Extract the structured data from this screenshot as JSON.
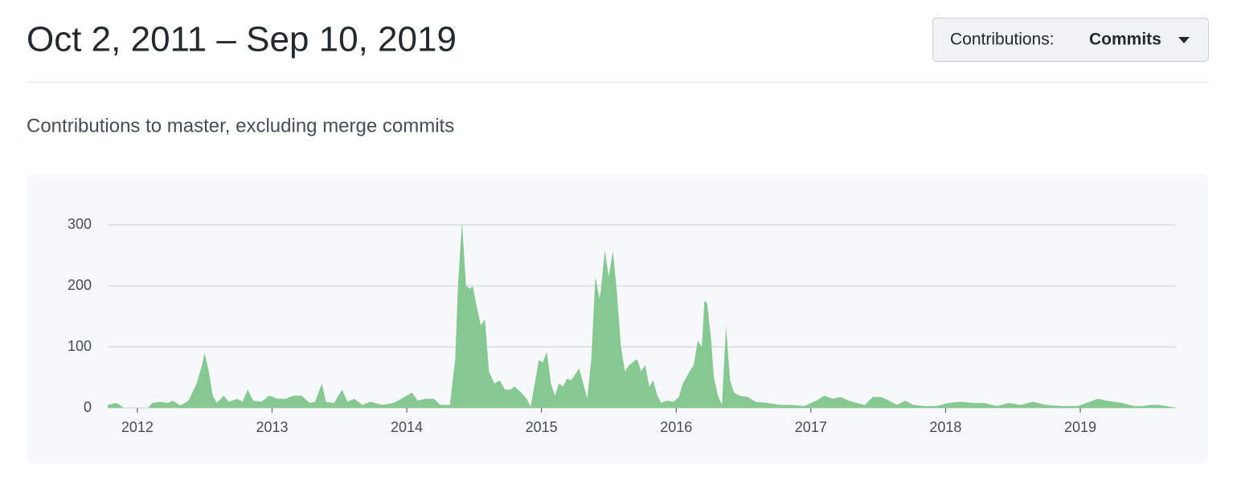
{
  "header": {
    "title": "Oct 2, 2011 – Sep 10, 2019",
    "button_label": "Contributions:",
    "button_value": "Commits"
  },
  "subtitle": "Contributions to master, excluding merge commits",
  "chart_data": {
    "type": "area",
    "color": "#86c891",
    "grid": true,
    "x": [
      2011.78,
      2011.84,
      2011.87,
      2011.9,
      2012.08,
      2012.11,
      2012.17,
      2012.23,
      2012.26,
      2012.32,
      2012.38,
      2012.44,
      2012.48,
      2012.5,
      2012.53,
      2012.56,
      2012.59,
      2012.64,
      2012.68,
      2012.74,
      2012.78,
      2012.82,
      2012.86,
      2012.92,
      2012.98,
      2013.04,
      2013.1,
      2013.16,
      2013.22,
      2013.28,
      2013.32,
      2013.37,
      2013.4,
      2013.46,
      2013.52,
      2013.56,
      2013.61,
      2013.67,
      2013.73,
      2013.82,
      2013.9,
      2013.96,
      2014.04,
      2014.08,
      2014.14,
      2014.2,
      2014.25,
      2014.32,
      2014.36,
      2014.38,
      2014.41,
      2014.44,
      2014.47,
      2014.49,
      2014.52,
      2014.55,
      2014.58,
      2014.61,
      2014.65,
      2014.69,
      2014.73,
      2014.77,
      2014.8,
      2014.85,
      2014.89,
      2014.92,
      2014.95,
      2014.98,
      2015.01,
      2015.04,
      2015.07,
      2015.1,
      2015.13,
      2015.16,
      2015.19,
      2015.22,
      2015.25,
      2015.28,
      2015.31,
      2015.34,
      2015.37,
      2015.4,
      2015.43,
      2015.44,
      2015.47,
      2015.5,
      2015.53,
      2015.56,
      2015.59,
      2015.62,
      2015.65,
      2015.68,
      2015.71,
      2015.74,
      2015.77,
      2015.8,
      2015.83,
      2015.86,
      2015.89,
      2015.93,
      2015.98,
      2016.02,
      2016.05,
      2016.1,
      2016.13,
      2016.16,
      2016.19,
      2016.21,
      2016.23,
      2016.26,
      2016.28,
      2016.31,
      2016.34,
      2016.37,
      2016.4,
      2016.43,
      2016.47,
      2016.53,
      2016.59,
      2016.68,
      2016.77,
      2016.86,
      2016.95,
      2017.04,
      2017.1,
      2017.16,
      2017.22,
      2017.28,
      2017.34,
      2017.4,
      2017.46,
      2017.52,
      2017.58,
      2017.64,
      2017.7,
      2017.76,
      2017.84,
      2017.93,
      2018.02,
      2018.11,
      2018.2,
      2018.29,
      2018.38,
      2018.47,
      2018.56,
      2018.65,
      2018.74,
      2018.86,
      2018.98,
      2019.07,
      2019.13,
      2019.19,
      2019.25,
      2019.31,
      2019.4,
      2019.46,
      2019.52,
      2019.58,
      2019.64,
      2019.71
    ],
    "values": [
      5,
      8,
      5,
      0,
      0,
      8,
      10,
      8,
      12,
      4,
      12,
      40,
      70,
      90,
      60,
      20,
      8,
      20,
      10,
      15,
      10,
      30,
      12,
      10,
      20,
      15,
      15,
      20,
      20,
      8,
      10,
      40,
      10,
      8,
      30,
      10,
      15,
      5,
      10,
      5,
      8,
      15,
      25,
      12,
      15,
      15,
      5,
      5,
      80,
      200,
      305,
      200,
      195,
      200,
      165,
      135,
      145,
      60,
      40,
      45,
      30,
      30,
      35,
      25,
      15,
      2,
      40,
      78,
      75,
      92,
      40,
      20,
      40,
      35,
      48,
      45,
      55,
      65,
      40,
      15,
      80,
      215,
      180,
      190,
      258,
      215,
      257,
      190,
      100,
      60,
      70,
      75,
      80,
      60,
      70,
      35,
      45,
      20,
      8,
      12,
      10,
      18,
      40,
      60,
      70,
      110,
      100,
      175,
      172,
      110,
      50,
      20,
      5,
      135,
      45,
      25,
      20,
      18,
      10,
      8,
      5,
      5,
      3,
      12,
      20,
      15,
      18,
      12,
      8,
      5,
      18,
      18,
      12,
      5,
      12,
      5,
      3,
      3,
      8,
      10,
      8,
      8,
      3,
      8,
      5,
      10,
      5,
      3,
      3,
      10,
      15,
      12,
      10,
      8,
      3,
      3,
      5,
      5,
      3,
      0
    ],
    "xlim": [
      2011.78,
      2019.71
    ],
    "xticks": [
      2012,
      2013,
      2014,
      2015,
      2016,
      2017,
      2018,
      2019
    ],
    "ylim": [
      0,
      310
    ],
    "yticks": [
      0,
      100,
      200,
      300
    ]
  }
}
